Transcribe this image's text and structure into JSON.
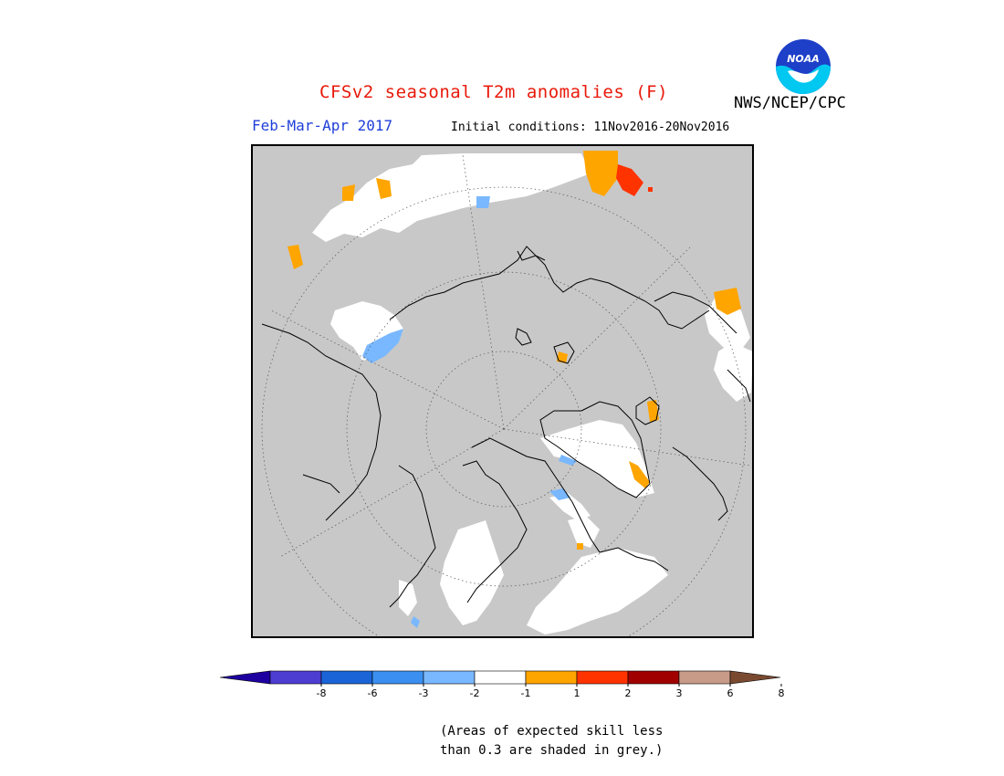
{
  "header": {
    "title": "CFSv2 seasonal T2m anomalies (F)",
    "season": "Feb-Mar-Apr 2017",
    "initial_conditions": "Initial conditions: 11Nov2016-20Nov2016",
    "agency": "NWS/NCEP/CPC",
    "logo_text": "NOAA"
  },
  "colors": {
    "grey_low_skill": "#c8c8c8",
    "near_normal": "#ffffff",
    "warm_1_2": "#ffa500",
    "warm_2_3": "#ff3300",
    "cool_m1_m2": "#79b8ff"
  },
  "legend": {
    "colors": [
      "#1e00a0",
      "#4d3dd0",
      "#1a64d8",
      "#3b8ff0",
      "#79b8ff",
      "#ffffff",
      "#ffa500",
      "#ff3300",
      "#a00000",
      "#c89b88",
      "#7a4a30"
    ],
    "tick_labels": [
      "-8",
      "-6",
      "-3",
      "-2",
      "-1",
      "1",
      "2",
      "3",
      "6",
      "8"
    ]
  },
  "footnote": {
    "line1": "(Areas of expected skill less",
    "line2": "than 0.3 are shaded in grey.)"
  }
}
